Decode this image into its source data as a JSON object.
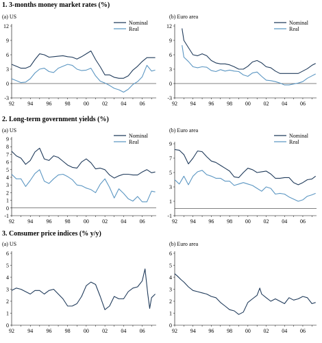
{
  "sections": [
    {
      "title": "1. 3-months money market rates (%)"
    },
    {
      "title": "2. Long-term government yields (%)"
    },
    {
      "title": "3. Consumer price indices (% y/y)"
    }
  ],
  "chart_data": [
    {
      "type": "line",
      "subtitle": "(a) US",
      "x_ticks": [
        "92",
        "94",
        "96",
        "98",
        "00",
        "02",
        "04",
        "06"
      ],
      "x_range": [
        1992,
        2007.5
      ],
      "y_ticks": [
        -3,
        0,
        3,
        6,
        9,
        12
      ],
      "ylim": [
        -3,
        12
      ],
      "legend_position": "top-right",
      "colors": [
        "#1f3a5a",
        "#5b96c2"
      ],
      "series": [
        {
          "name": "Nominal",
          "x": [
            1992.0,
            1992.5,
            1993.0,
            1993.5,
            1994.0,
            1994.5,
            1995.0,
            1995.5,
            1996.0,
            1996.5,
            1997.0,
            1997.5,
            1998.0,
            1998.5,
            1999.0,
            1999.5,
            2000.0,
            2000.5,
            2001.0,
            2001.5,
            2002.0,
            2002.5,
            2003.0,
            2003.5,
            2004.0,
            2004.5,
            2005.0,
            2005.5,
            2006.0,
            2006.5,
            2007.0,
            2007.4
          ],
          "values": [
            4.0,
            3.6,
            3.2,
            3.2,
            3.6,
            5.0,
            6.2,
            6.0,
            5.5,
            5.6,
            5.7,
            5.8,
            5.6,
            5.5,
            5.1,
            5.6,
            6.2,
            6.8,
            5.0,
            3.5,
            1.8,
            1.8,
            1.3,
            1.1,
            1.1,
            1.6,
            2.8,
            3.6,
            4.6,
            5.4,
            5.4,
            5.4
          ]
        },
        {
          "name": "Real",
          "x": [
            1992.0,
            1992.5,
            1993.0,
            1993.5,
            1994.0,
            1994.5,
            1995.0,
            1995.5,
            1996.0,
            1996.5,
            1997.0,
            1997.5,
            1998.0,
            1998.5,
            1999.0,
            1999.5,
            2000.0,
            2000.5,
            2001.0,
            2001.5,
            2002.0,
            2002.5,
            2003.0,
            2003.5,
            2004.0,
            2004.5,
            2005.0,
            2005.5,
            2006.0,
            2006.5,
            2007.0,
            2007.4
          ],
          "values": [
            1.0,
            0.6,
            0.2,
            0.3,
            1.0,
            2.2,
            3.0,
            3.2,
            2.5,
            2.3,
            3.2,
            3.6,
            4.0,
            3.8,
            3.0,
            2.7,
            2.8,
            3.2,
            1.6,
            0.5,
            0.1,
            -0.4,
            -1.0,
            -1.3,
            -1.8,
            -1.2,
            -0.2,
            0.4,
            1.4,
            3.8,
            2.6,
            2.8
          ]
        }
      ]
    },
    {
      "type": "line",
      "subtitle": "(b) Euro area",
      "x_ticks": [
        "92",
        "94",
        "96",
        "98",
        "00",
        "02",
        "04",
        "06"
      ],
      "x_range": [
        1992,
        2007.5
      ],
      "y_ticks": [
        -3,
        0,
        3,
        6,
        9,
        12
      ],
      "ylim": [
        -3,
        12
      ],
      "legend_position": "top-right",
      "colors": [
        "#1f3a5a",
        "#5b96c2"
      ],
      "series": [
        {
          "name": "Nominal",
          "x": [
            1992.8,
            1993.0,
            1993.5,
            1994.0,
            1994.5,
            1995.0,
            1995.5,
            1996.0,
            1996.5,
            1997.0,
            1997.5,
            1998.0,
            1998.5,
            1999.0,
            1999.5,
            2000.0,
            2000.5,
            2001.0,
            2001.5,
            2002.0,
            2002.5,
            2003.0,
            2003.5,
            2004.0,
            2004.5,
            2005.0,
            2005.5,
            2006.0,
            2006.5,
            2007.0,
            2007.4
          ],
          "values": [
            11.5,
            9.0,
            7.5,
            6.0,
            5.8,
            6.2,
            5.8,
            4.8,
            4.3,
            4.1,
            4.1,
            3.9,
            3.5,
            3.0,
            3.0,
            3.6,
            4.5,
            4.8,
            4.3,
            3.5,
            3.3,
            2.6,
            2.1,
            2.1,
            2.1,
            2.1,
            2.1,
            2.6,
            3.1,
            3.8,
            4.2
          ]
        },
        {
          "name": "Real",
          "x": [
            1992.8,
            1993.0,
            1993.5,
            1994.0,
            1994.5,
            1995.0,
            1995.5,
            1996.0,
            1996.5,
            1997.0,
            1997.5,
            1998.0,
            1998.5,
            1999.0,
            1999.5,
            2000.0,
            2000.5,
            2001.0,
            2001.5,
            2002.0,
            2002.5,
            2003.0,
            2003.5,
            2004.0,
            2004.5,
            2005.0,
            2005.5,
            2006.0,
            2006.5,
            2007.0,
            2007.4
          ],
          "values": [
            8.0,
            5.5,
            4.6,
            3.5,
            3.3,
            3.5,
            3.4,
            2.7,
            2.5,
            2.9,
            2.6,
            2.8,
            2.6,
            2.5,
            1.8,
            1.5,
            2.2,
            2.4,
            1.5,
            0.7,
            0.6,
            0.4,
            0.1,
            -0.3,
            -0.3,
            -0.1,
            0.1,
            0.4,
            1.1,
            1.6,
            2.0
          ]
        }
      ]
    },
    {
      "type": "line",
      "subtitle": "(a) US",
      "x_ticks": [
        "92",
        "94",
        "96",
        "98",
        "00",
        "02",
        "04",
        "06"
      ],
      "x_range": [
        1992,
        2007.5
      ],
      "y_ticks": [
        -1,
        0,
        1,
        2,
        3,
        4,
        5,
        6,
        7,
        8,
        9
      ],
      "ylim": [
        -1,
        9
      ],
      "legend_position": "top-right",
      "colors": [
        "#1f3a5a",
        "#5b96c2"
      ],
      "series": [
        {
          "name": "Nominal",
          "x": [
            1992.0,
            1992.5,
            1993.0,
            1993.5,
            1994.0,
            1994.5,
            1995.0,
            1995.5,
            1996.0,
            1996.5,
            1997.0,
            1997.5,
            1998.0,
            1998.5,
            1999.0,
            1999.5,
            2000.0,
            2000.5,
            2001.0,
            2001.5,
            2002.0,
            2002.5,
            2003.0,
            2003.5,
            2004.0,
            2004.5,
            2005.0,
            2005.5,
            2006.0,
            2006.5,
            2007.0,
            2007.4
          ],
          "values": [
            7.4,
            6.8,
            6.5,
            5.7,
            6.2,
            7.3,
            7.8,
            6.4,
            6.2,
            6.8,
            6.6,
            6.1,
            5.6,
            5.3,
            5.2,
            6.0,
            6.4,
            5.9,
            5.1,
            5.2,
            5.0,
            4.3,
            3.9,
            4.2,
            4.4,
            4.4,
            4.3,
            4.3,
            4.7,
            5.0,
            4.6,
            4.7
          ]
        },
        {
          "name": "Real",
          "x": [
            1992.0,
            1992.5,
            1993.0,
            1993.5,
            1994.0,
            1994.5,
            1995.0,
            1995.5,
            1996.0,
            1996.5,
            1997.0,
            1997.5,
            1998.0,
            1998.5,
            1999.0,
            1999.5,
            2000.0,
            2000.5,
            2001.0,
            2001.5,
            2002.0,
            2002.5,
            2003.0,
            2003.5,
            2004.0,
            2004.5,
            2005.0,
            2005.5,
            2006.0,
            2006.5,
            2007.0,
            2007.4
          ],
          "values": [
            4.4,
            3.8,
            3.8,
            2.8,
            3.6,
            4.5,
            5.0,
            3.5,
            3.2,
            3.8,
            4.3,
            4.4,
            4.1,
            3.7,
            3.0,
            2.9,
            2.6,
            2.4,
            2.0,
            3.1,
            3.8,
            2.7,
            1.3,
            2.5,
            1.9,
            1.2,
            0.9,
            1.5,
            0.8,
            0.8,
            2.2,
            2.1
          ]
        }
      ]
    },
    {
      "type": "line",
      "subtitle": "(b) Euro area",
      "x_ticks": [
        "92",
        "94",
        "96",
        "98",
        "00",
        "02",
        "04",
        "06"
      ],
      "x_range": [
        1992,
        2007.5
      ],
      "y_ticks": [
        -1,
        1,
        3,
        5,
        7,
        9
      ],
      "ylim": [
        -1,
        9
      ],
      "legend_position": "top-right",
      "colors": [
        "#1f3a5a",
        "#5b96c2"
      ],
      "series": [
        {
          "name": "Nominal",
          "x": [
            1992.0,
            1992.5,
            1993.0,
            1993.5,
            1994.0,
            1994.5,
            1995.0,
            1995.5,
            1996.0,
            1996.5,
            1997.0,
            1997.5,
            1998.0,
            1998.5,
            1999.0,
            1999.5,
            2000.0,
            2000.5,
            2001.0,
            2001.5,
            2002.0,
            2002.5,
            2003.0,
            2003.5,
            2004.0,
            2004.5,
            2005.0,
            2005.5,
            2006.0,
            2006.5,
            2007.0,
            2007.4
          ],
          "values": [
            8.2,
            8.1,
            7.5,
            6.2,
            7.0,
            8.0,
            7.9,
            7.2,
            6.6,
            6.4,
            6.0,
            5.6,
            5.2,
            4.4,
            4.3,
            5.0,
            5.6,
            5.4,
            5.0,
            5.1,
            5.2,
            4.8,
            4.2,
            4.2,
            4.3,
            4.3,
            3.6,
            3.3,
            3.6,
            4.0,
            4.1,
            4.5
          ]
        },
        {
          "name": "Real",
          "x": [
            1992.0,
            1992.5,
            1993.0,
            1993.5,
            1994.0,
            1994.5,
            1995.0,
            1995.5,
            1996.0,
            1996.5,
            1997.0,
            1997.5,
            1998.0,
            1998.5,
            1999.0,
            1999.5,
            2000.0,
            2000.5,
            2001.0,
            2001.5,
            2002.0,
            2002.5,
            2003.0,
            2003.5,
            2004.0,
            2004.5,
            2005.0,
            2005.5,
            2006.0,
            2006.5,
            2007.0,
            2007.4
          ],
          "values": [
            4.0,
            3.4,
            4.5,
            3.3,
            4.5,
            5.1,
            5.3,
            4.7,
            4.5,
            4.2,
            4.2,
            3.8,
            3.8,
            3.2,
            3.4,
            3.6,
            3.4,
            3.2,
            2.8,
            2.4,
            3.0,
            2.8,
            2.0,
            2.1,
            2.0,
            1.6,
            1.3,
            1.0,
            1.2,
            1.7,
            1.9,
            2.1
          ]
        }
      ]
    },
    {
      "type": "line",
      "subtitle": "(a) US",
      "x_ticks": [
        "92",
        "94",
        "96",
        "98",
        "00",
        "02",
        "04",
        "06"
      ],
      "x_range": [
        1992,
        2007.5
      ],
      "y_ticks": [
        0,
        1,
        2,
        3,
        4,
        5,
        6
      ],
      "ylim": [
        0,
        6
      ],
      "colors": [
        "#1f3a5a"
      ],
      "series": [
        {
          "x": [
            1992.0,
            1992.5,
            1993.0,
            1993.5,
            1994.0,
            1994.5,
            1995.0,
            1995.5,
            1996.0,
            1996.5,
            1997.0,
            1997.5,
            1998.0,
            1998.5,
            1999.0,
            1999.5,
            2000.0,
            2000.5,
            2001.0,
            2001.5,
            2002.0,
            2002.5,
            2003.0,
            2003.5,
            2004.0,
            2004.5,
            2005.0,
            2005.5,
            2006.0,
            2006.3,
            2006.6,
            2006.8,
            2007.0,
            2007.4
          ],
          "values": [
            2.9,
            3.1,
            3.0,
            2.8,
            2.6,
            2.9,
            2.9,
            2.6,
            2.9,
            3.0,
            2.6,
            2.2,
            1.6,
            1.6,
            1.8,
            2.4,
            3.3,
            3.6,
            3.4,
            2.4,
            1.3,
            1.6,
            2.4,
            2.2,
            2.2,
            2.8,
            3.1,
            3.2,
            3.7,
            4.7,
            2.6,
            1.4,
            2.3,
            2.6
          ]
        }
      ]
    },
    {
      "type": "line",
      "subtitle": "(b) Euro area",
      "x_ticks": [
        "92",
        "94",
        "96",
        "98",
        "00",
        "02",
        "04",
        "06"
      ],
      "x_range": [
        1992,
        2007.5
      ],
      "y_ticks": [
        0,
        1,
        2,
        3,
        4,
        5,
        6
      ],
      "ylim": [
        0,
        6
      ],
      "colors": [
        "#1f3a5a"
      ],
      "series": [
        {
          "x": [
            1992.0,
            1992.3,
            1992.7,
            1993.0,
            1993.5,
            1994.0,
            1994.5,
            1995.0,
            1995.5,
            1996.0,
            1996.5,
            1997.0,
            1997.5,
            1998.0,
            1998.5,
            1999.0,
            1999.5,
            2000.0,
            2000.5,
            2001.0,
            2001.3,
            2001.5,
            2002.0,
            2002.5,
            2003.0,
            2003.5,
            2004.0,
            2004.5,
            2005.0,
            2005.5,
            2006.0,
            2006.5,
            2007.0,
            2007.4
          ],
          "values": [
            4.3,
            4.1,
            3.8,
            3.6,
            3.2,
            2.9,
            2.8,
            2.7,
            2.6,
            2.4,
            2.3,
            1.9,
            1.6,
            1.3,
            1.2,
            0.9,
            1.1,
            1.9,
            2.2,
            2.5,
            3.1,
            2.6,
            2.3,
            2.0,
            2.2,
            2.0,
            1.8,
            2.3,
            2.1,
            2.2,
            2.4,
            2.3,
            1.8,
            1.9
          ]
        }
      ]
    }
  ]
}
